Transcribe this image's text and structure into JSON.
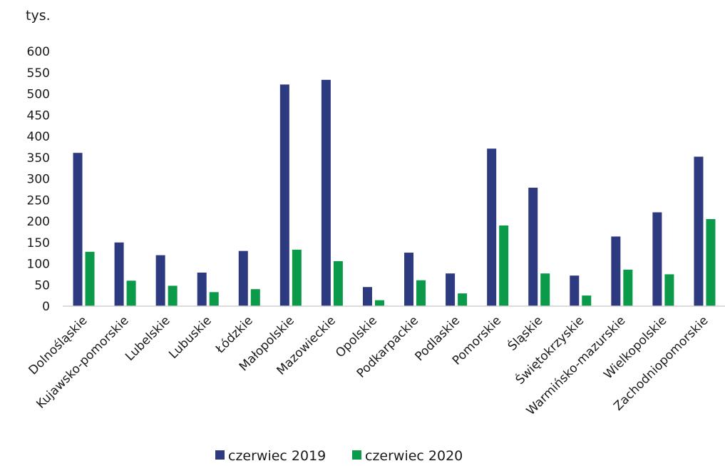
{
  "chart_data": {
    "type": "bar",
    "ylabel": "tys.",
    "ylim": [
      0,
      600
    ],
    "yticks": [
      "0",
      "50",
      "100",
      "150",
      "200",
      "250",
      "300",
      "350",
      "400",
      "450",
      "500",
      "550",
      "600"
    ],
    "categories": [
      "Dolnośląskie",
      "Kujawsko-pomorskie",
      "Lubelskie",
      "Lubuskie",
      "Łódzkie",
      "Małopolskie",
      "Mazowieckie",
      "Opolskie",
      "Podkarpackie",
      "Podlaskie",
      "Pomorskie",
      "Śląskie",
      "Świętokrzyskie",
      "Warmińsko-mazurskie",
      "Wielkopolskie",
      "Zachodniopomorskie"
    ],
    "series": [
      {
        "name": "czerwiec 2019",
        "color": "#2e3a80",
        "values": [
          361,
          150,
          120,
          79,
          130,
          522,
          533,
          45,
          126,
          77,
          371,
          279,
          72,
          164,
          221,
          352
        ]
      },
      {
        "name": "czerwiec 2020",
        "color": "#0a9a4a",
        "values": [
          128,
          60,
          48,
          33,
          40,
          133,
          106,
          14,
          61,
          30,
          190,
          77,
          25,
          86,
          75,
          205
        ]
      }
    ],
    "grid": false,
    "legend_position": "bottom-center"
  }
}
